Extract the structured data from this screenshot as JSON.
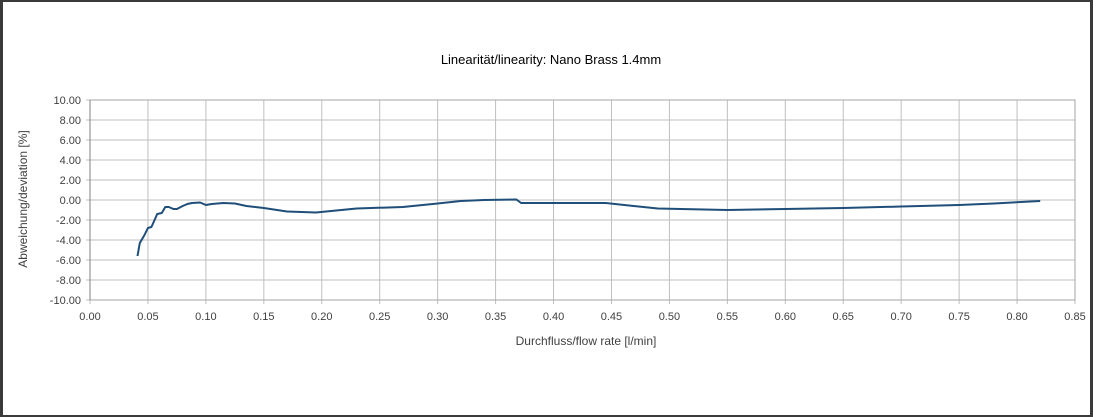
{
  "chart_data": {
    "type": "line",
    "title": "Linearität/linearity: Nano Brass 1.4mm",
    "xlabel": "Durchfluss/flow rate [l/min]",
    "ylabel": "Abweichung/deviation [%]",
    "xlim": [
      0,
      0.85
    ],
    "ylim": [
      -10,
      10
    ],
    "x_ticks": [
      "0.00",
      "0.05",
      "0.10",
      "0.15",
      "0.20",
      "0.25",
      "0.30",
      "0.35",
      "0.40",
      "0.45",
      "0.50",
      "0.55",
      "0.60",
      "0.65",
      "0.70",
      "0.75",
      "0.80",
      "0.85"
    ],
    "y_ticks": [
      "10.00",
      "8.00",
      "6.00",
      "4.00",
      "2.00",
      "0.00",
      "-2.00",
      "-4.00",
      "-6.00",
      "-8.00",
      "-10.00"
    ],
    "grid": true,
    "legend": "none",
    "line_color": "#1f4e79",
    "series": [
      {
        "x": [
          0.041,
          0.043,
          0.047,
          0.05,
          0.053,
          0.055,
          0.058,
          0.062,
          0.065,
          0.068,
          0.072,
          0.075,
          0.08,
          0.084,
          0.088,
          0.095,
          0.1,
          0.105,
          0.115,
          0.125,
          0.135,
          0.15,
          0.17,
          0.195,
          0.23,
          0.27,
          0.3,
          0.32,
          0.34,
          0.368,
          0.372,
          0.4,
          0.445,
          0.49,
          0.55,
          0.6,
          0.65,
          0.7,
          0.75,
          0.78,
          0.82
        ],
        "y": [
          -5.6,
          -4.3,
          -3.5,
          -2.8,
          -2.7,
          -2.2,
          -1.4,
          -1.3,
          -0.7,
          -0.7,
          -0.9,
          -0.9,
          -0.6,
          -0.4,
          -0.3,
          -0.25,
          -0.5,
          -0.4,
          -0.3,
          -0.35,
          -0.6,
          -0.8,
          -1.15,
          -1.25,
          -0.85,
          -0.7,
          -0.35,
          -0.1,
          0.0,
          0.05,
          -0.3,
          -0.3,
          -0.3,
          -0.85,
          -1.0,
          -0.9,
          -0.8,
          -0.65,
          -0.5,
          -0.35,
          -0.1
        ]
      }
    ]
  }
}
